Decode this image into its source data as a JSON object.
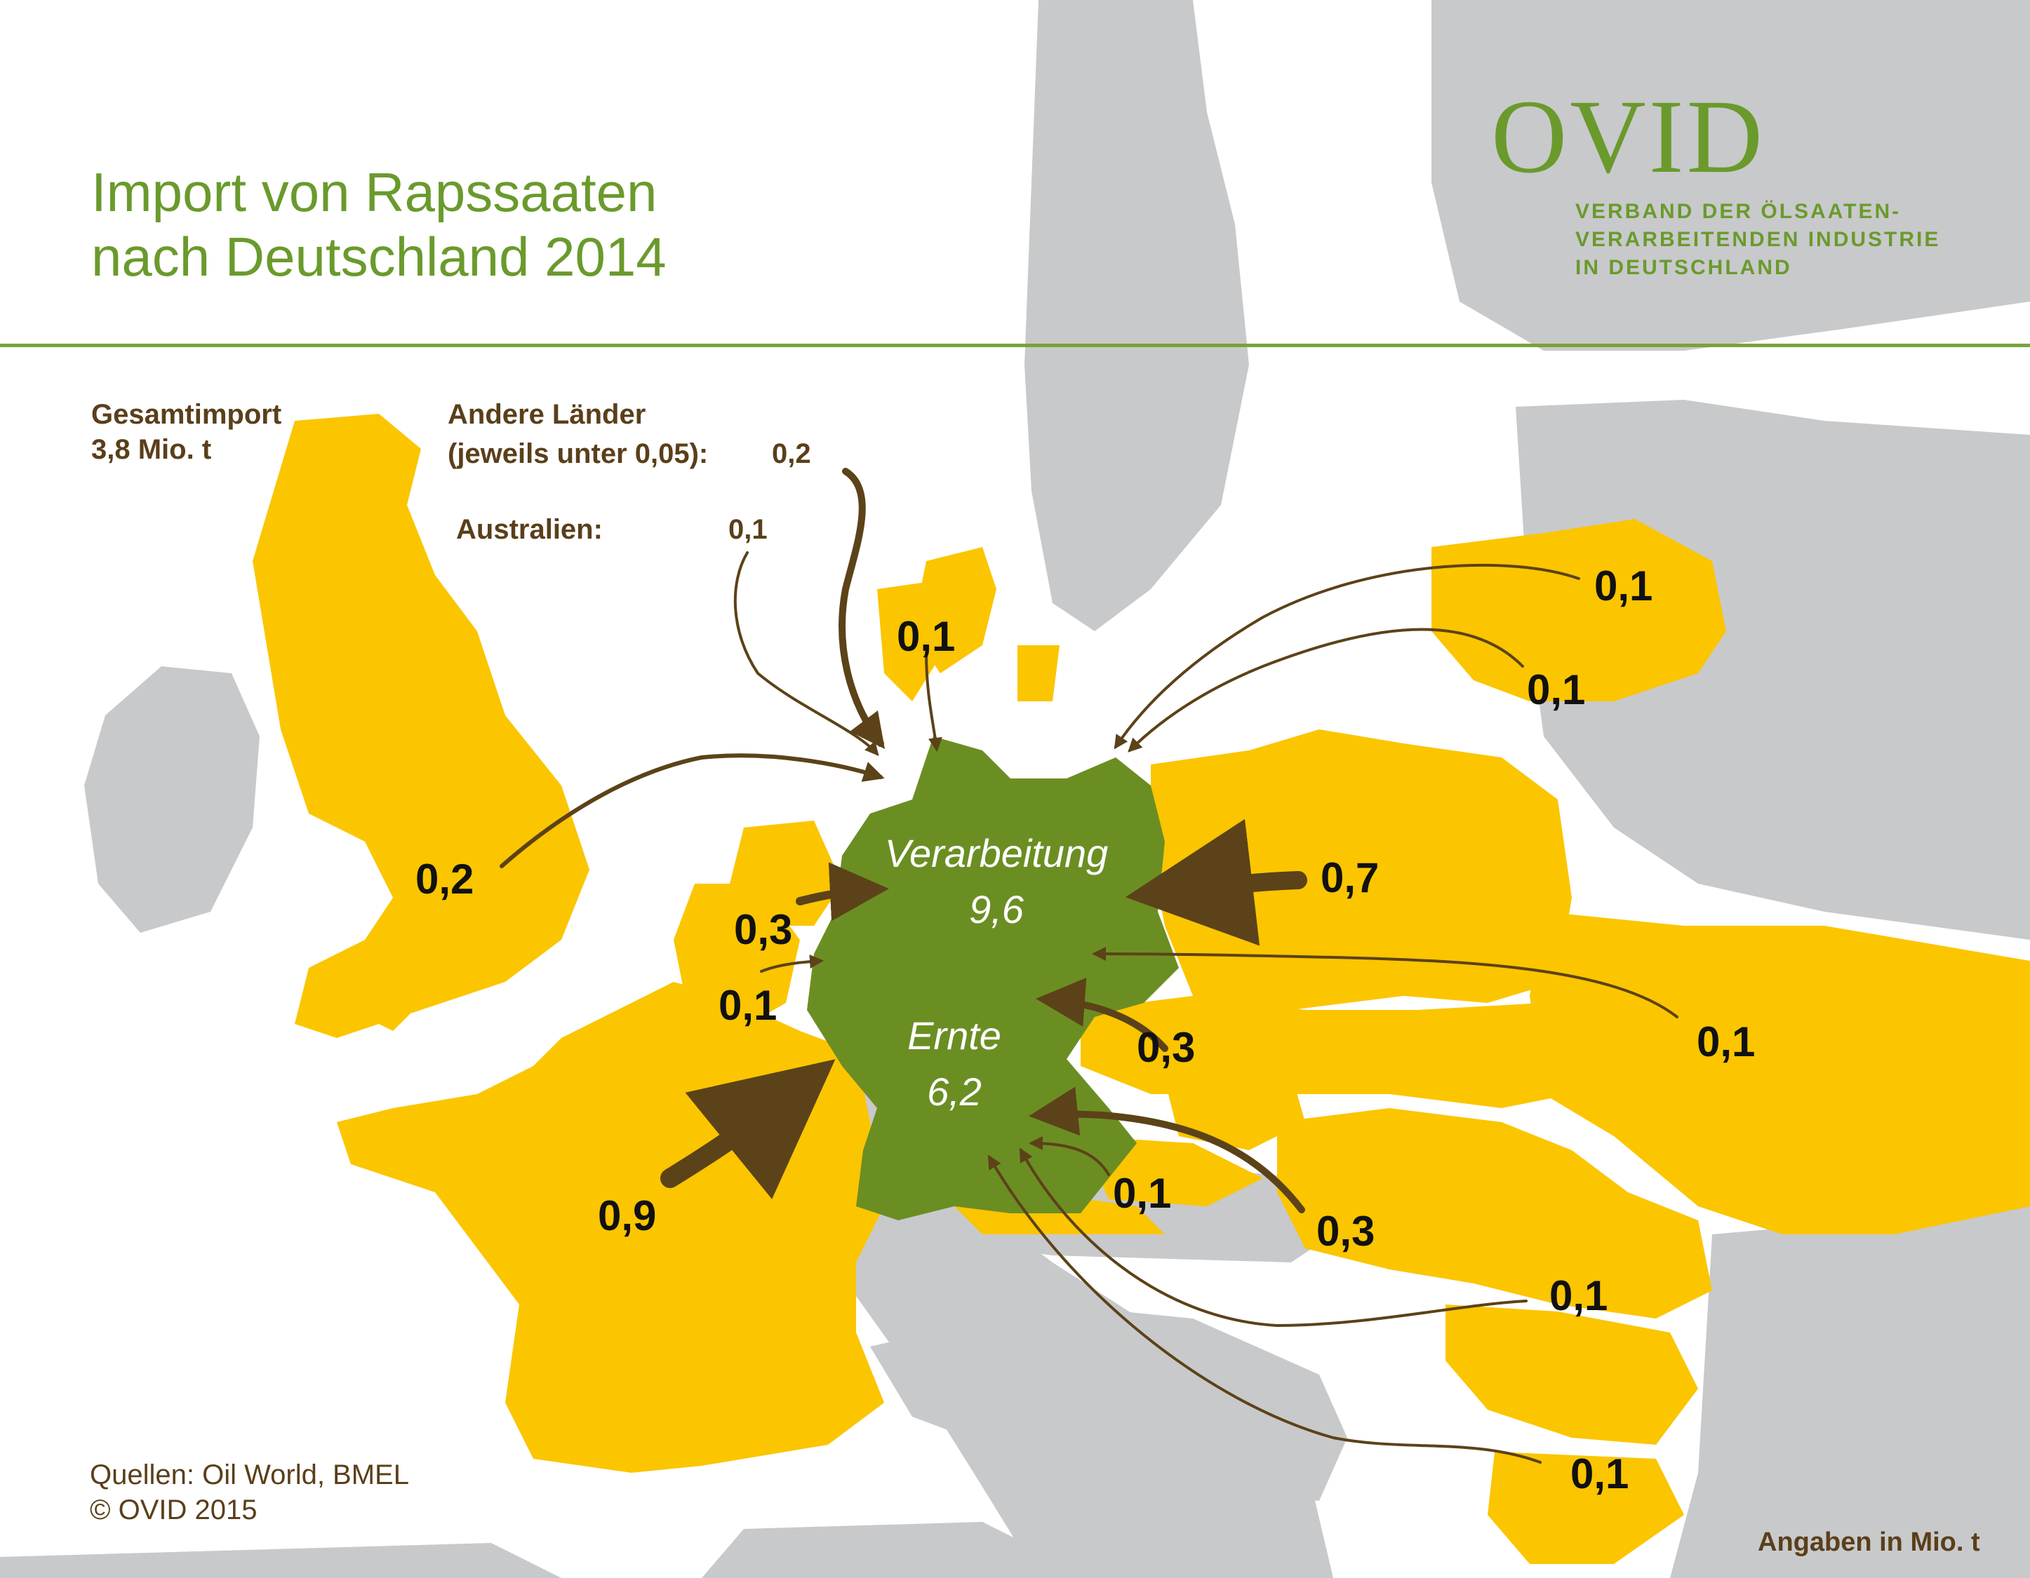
{
  "title": {
    "line1": "Import von Rapssaaten",
    "line2": "nach Deutschland 2014"
  },
  "logo": {
    "wordmark": "OVID",
    "subtitle_line1": "VERBAND DER ÖLSAATEN-",
    "subtitle_line2": "VERARBEITENDEN INDUSTRIE",
    "subtitle_line3": "IN DEUTSCHLAND"
  },
  "notes": {
    "total_label": "Gesamtimport",
    "total_value": "3,8 Mio. t",
    "other_line1": "Andere Länder",
    "other_line2": "(jeweils unter 0,05):",
    "other_value": "0,2",
    "australia_label": "Australien:",
    "australia_value": "0,1"
  },
  "germany": {
    "processing_label": "Verarbeitung",
    "processing_value": "9,6",
    "harvest_label": "Ernte",
    "harvest_value": "6,2"
  },
  "flows": [
    {
      "origin_value": "0,1"
    },
    {
      "origin_value": "0,2"
    },
    {
      "origin_value": "0,3"
    },
    {
      "origin_value": "0,1"
    },
    {
      "origin_value": "0,9"
    },
    {
      "origin_value": "0,1"
    },
    {
      "origin_value": "0,1"
    },
    {
      "origin_value": "0,7"
    },
    {
      "origin_value": "0,1"
    },
    {
      "origin_value": "0,3"
    },
    {
      "origin_value": "0,1"
    },
    {
      "origin_value": "0,3"
    },
    {
      "origin_value": "0,1"
    },
    {
      "origin_value": "0,1"
    }
  ],
  "source": {
    "line1": "Quellen: Oil World, BMEL",
    "line2": "© OVID 2015"
  },
  "unit_note": "Angaben in Mio. t",
  "colors": {
    "exporter_countries": "#fbc500",
    "germany": "#6b8e23",
    "other_countries": "#c8c9cb",
    "arrows": "#5c4218",
    "title": "#6a9a2c"
  }
}
